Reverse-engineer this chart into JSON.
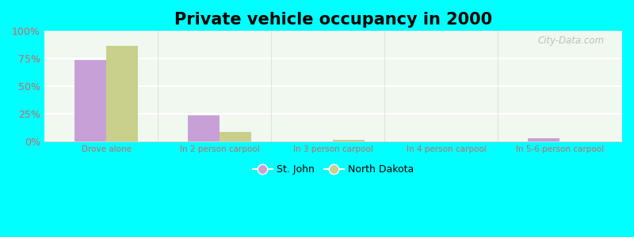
{
  "title": "Private vehicle occupancy in 2000",
  "categories": [
    "Drove alone",
    "In 2 person carpool",
    "In 3 person carpool",
    "In 4 person carpool",
    "In 5-6 person carpool"
  ],
  "st_john_values": [
    74.0,
    24.0,
    0.0,
    0.0,
    3.0
  ],
  "north_dakota_values": [
    87.0,
    9.0,
    1.5,
    0.5,
    0.5
  ],
  "st_john_color": "#c8a0d8",
  "north_dakota_color": "#c8d08c",
  "background_color": "#00ffff",
  "plot_bg_color": "#f0f8f0",
  "ylim": [
    0,
    100
  ],
  "yticks": [
    0,
    25,
    50,
    75,
    100
  ],
  "ytick_labels": [
    "0%",
    "25%",
    "50%",
    "75%",
    "100%"
  ],
  "legend_labels": [
    "St. John",
    "North Dakota"
  ],
  "bar_width": 0.28,
  "title_fontsize": 15,
  "tick_color": "#cc6666",
  "watermark": "City-Data.com"
}
